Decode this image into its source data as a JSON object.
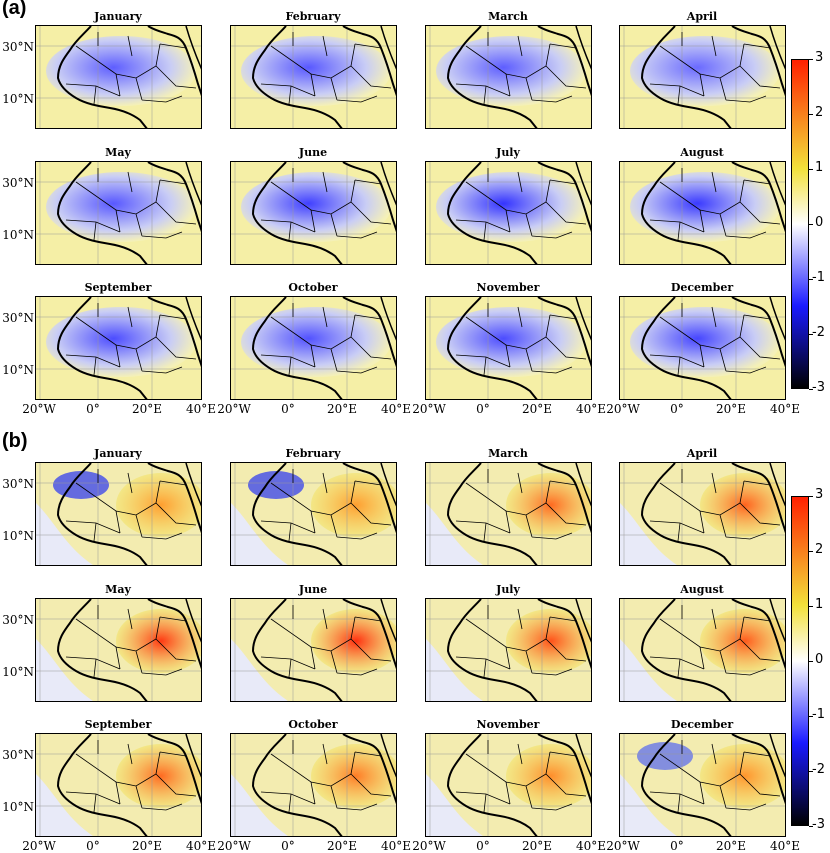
{
  "panels": [
    {
      "label": "(a)",
      "colorbar": {
        "ticks": [
          "3",
          "2",
          "1",
          "0",
          "-1",
          "-2",
          "-3"
        ],
        "min": -3,
        "max": 3
      },
      "variant": "blue"
    },
    {
      "label": "(b)",
      "colorbar": {
        "ticks": [
          "3",
          "2",
          "1",
          "0",
          "-1",
          "-2",
          "-3"
        ],
        "min": -3,
        "max": 3
      },
      "variant": "warm"
    }
  ],
  "months": [
    "January",
    "February",
    "March",
    "April",
    "May",
    "June",
    "July",
    "August",
    "September",
    "October",
    "November",
    "December"
  ],
  "lat_labels": [
    "30°N",
    "10°N"
  ],
  "lon_labels": [
    "20°W",
    "0°",
    "20°E",
    "40°E"
  ],
  "colormap": {
    "neg_end": "#000000",
    "neg_mid": "#1a1aff",
    "zero": "#ffffff",
    "pos_mid": "#f2e13a",
    "pos_end": "#ff2000"
  }
}
